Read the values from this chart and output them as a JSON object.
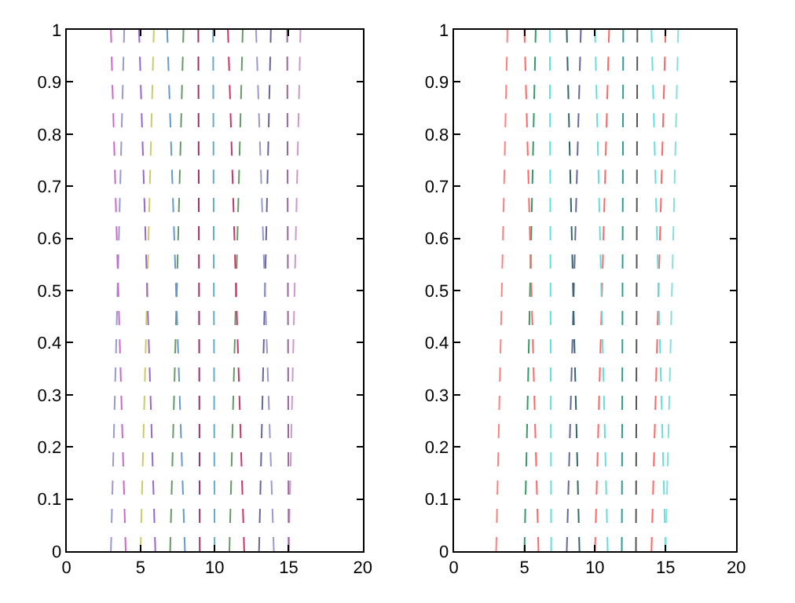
{
  "chart_data": [
    {
      "type": "line",
      "line_style": "dashed",
      "xlim": [
        0,
        20
      ],
      "ylim": [
        0,
        1
      ],
      "xticks": [
        0,
        5,
        10,
        15,
        20
      ],
      "yticks": [
        0,
        0.1,
        0.2,
        0.3,
        0.4,
        0.5,
        0.6,
        0.7,
        0.8,
        0.9,
        1
      ],
      "series": [
        {
          "color": "#9999cc",
          "x": [
            3,
            3.9
          ],
          "values": [
            0,
            1
          ]
        },
        {
          "color": "#cc66cc",
          "x": [
            4,
            3.0
          ],
          "values": [
            0,
            1
          ]
        },
        {
          "color": "#cccc66",
          "x": [
            5,
            5.9
          ],
          "values": [
            0,
            1
          ]
        },
        {
          "color": "#9966cc",
          "x": [
            6,
            4.9
          ],
          "values": [
            0,
            1
          ]
        },
        {
          "color": "#669966",
          "x": [
            7,
            7.9
          ],
          "values": [
            0,
            1
          ]
        },
        {
          "color": "#6699cc",
          "x": [
            8,
            6.8
          ],
          "values": [
            0,
            1
          ]
        },
        {
          "color": "#993366",
          "x": [
            9,
            8.9
          ],
          "values": [
            0,
            1
          ]
        },
        {
          "color": "#66aacc",
          "x": [
            10,
            9.9
          ],
          "values": [
            0,
            1
          ]
        },
        {
          "color": "#669966",
          "x": [
            11,
            11.9
          ],
          "values": [
            0,
            1
          ]
        },
        {
          "color": "#cc3366",
          "x": [
            12,
            10.9
          ],
          "values": [
            0,
            1
          ]
        },
        {
          "color": "#666699",
          "x": [
            13,
            13.8
          ],
          "values": [
            0,
            1
          ]
        },
        {
          "color": "#9999cc",
          "x": [
            14,
            12.8
          ],
          "values": [
            0,
            1
          ]
        },
        {
          "color": "#cc99cc",
          "x": [
            15,
            15.8
          ],
          "values": [
            0,
            1
          ]
        },
        {
          "color": "#996699",
          "x": [
            15,
            14.9
          ],
          "values": [
            0,
            1
          ]
        }
      ]
    },
    {
      "type": "line",
      "line_style": "dashed",
      "xlim": [
        0,
        20
      ],
      "ylim": [
        0,
        1
      ],
      "xticks": [
        0,
        5,
        10,
        15,
        20
      ],
      "yticks": [
        0,
        0.1,
        0.2,
        0.3,
        0.4,
        0.5,
        0.6,
        0.7,
        0.8,
        0.9,
        1
      ],
      "series": [
        {
          "color": "#ff8080",
          "x": [
            3,
            3.8
          ],
          "values": [
            0,
            1
          ]
        },
        {
          "color": "#339966",
          "x": [
            5,
            5.8
          ],
          "values": [
            0,
            1
          ]
        },
        {
          "color": "#ff6666",
          "x": [
            6,
            5.0
          ],
          "values": [
            0,
            1
          ]
        },
        {
          "color": "#66dddd",
          "x": [
            6.9,
            6.8
          ],
          "values": [
            0,
            1
          ]
        },
        {
          "color": "#666699",
          "x": [
            8,
            9.0
          ],
          "values": [
            0,
            1
          ]
        },
        {
          "color": "#336666",
          "x": [
            8.9,
            8.0
          ],
          "values": [
            0,
            1
          ]
        },
        {
          "color": "#ff6666",
          "x": [
            10,
            11.0
          ],
          "values": [
            0,
            1
          ]
        },
        {
          "color": "#66dddd",
          "x": [
            10.9,
            10.0
          ],
          "values": [
            0,
            1
          ]
        },
        {
          "color": "#339999",
          "x": [
            11.9,
            12.0
          ],
          "values": [
            0,
            1
          ]
        },
        {
          "color": "#555555",
          "x": [
            12.9,
            13.0
          ],
          "values": [
            0,
            1
          ]
        },
        {
          "color": "#ff6666",
          "x": [
            14,
            15.0
          ],
          "values": [
            0,
            1
          ]
        },
        {
          "color": "#66dddd",
          "x": [
            15,
            14.0
          ],
          "values": [
            0,
            1
          ]
        },
        {
          "color": "#88dddd",
          "x": [
            15,
            15.9
          ],
          "values": [
            0,
            1
          ]
        }
      ]
    }
  ]
}
